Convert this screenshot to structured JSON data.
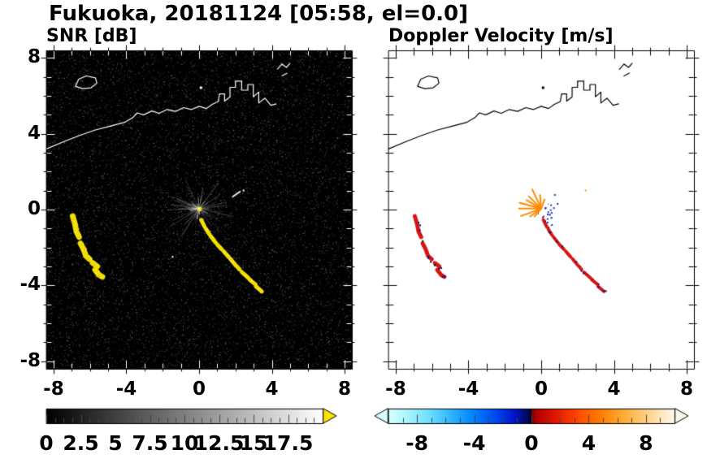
{
  "title": "Fukuoka, 20181124 [05:58, el=0.0]",
  "chart_data": {
    "type": "heatmap",
    "subtype": "radar-ppi-dual-panel",
    "title": "Fukuoka, 20181124 [05:58, el=0.0]",
    "site": "Fukuoka",
    "date": "20181124",
    "time": "05:58",
    "elevation": "el=0.0",
    "axis": {
      "xlim": [
        -8.4,
        8.4
      ],
      "ylim": [
        -8.4,
        8.4
      ],
      "xtick_values": [
        -8,
        -4,
        0,
        4,
        8
      ],
      "xtick_labels": [
        "-8",
        "-4",
        "0",
        "4",
        "8"
      ],
      "ytick_values": [
        8,
        4,
        0,
        -4,
        -8
      ],
      "ytick_labels": [
        "8",
        "4",
        "0",
        "-4",
        "-8"
      ],
      "minor_step": 1
    },
    "panels": [
      {
        "label": "SNR [dB]",
        "background": "#000000",
        "coast_color": "#ffffff",
        "echo_color": "#f2df00",
        "echo_core_color": "#ffffff",
        "spike_color": "#c8c8c8",
        "colorbar": {
          "min": 0,
          "max": 20,
          "tick_values": [
            0,
            2.5,
            5,
            7.5,
            10,
            12.5,
            15,
            17.5
          ],
          "tick_labels": [
            "0",
            "2.5",
            "5",
            "7.5",
            "10",
            "12.5",
            "15",
            "17.5"
          ],
          "minor_step": 0.625,
          "gradient": [
            [
              0,
              "#000000"
            ],
            [
              1,
              "#ffffff"
            ]
          ],
          "over_color": "#f6e400"
        }
      },
      {
        "label": "Doppler Velocity [m/s]",
        "background": "#ffffff",
        "coast_color": "#000000",
        "echo_color": "#d81414",
        "fleck_navy": "#001284",
        "fleck_black": "#1a1a1a",
        "spike_orange": "#ff8a00",
        "cluster_blue": "#1436c8",
        "colorbar": {
          "min": -10,
          "max": 10,
          "tick_values": [
            -8,
            -4,
            0,
            4,
            8
          ],
          "tick_labels": [
            "-8",
            "-4",
            "0",
            "4",
            "8"
          ],
          "minor_step": 1,
          "gradient": [
            [
              0.0,
              "#d8ffff"
            ],
            [
              0.06,
              "#aef6ff"
            ],
            [
              0.14,
              "#6fe0ff"
            ],
            [
              0.22,
              "#2fb4ff"
            ],
            [
              0.3,
              "#0080ff"
            ],
            [
              0.38,
              "#0044ee"
            ],
            [
              0.44,
              "#0014c8"
            ],
            [
              0.48,
              "#000a6e"
            ],
            [
              0.499,
              "#00022a"
            ],
            [
              0.501,
              "#7a0000"
            ],
            [
              0.52,
              "#b40000"
            ],
            [
              0.58,
              "#e11400"
            ],
            [
              0.66,
              "#ff4600"
            ],
            [
              0.74,
              "#ff7d00"
            ],
            [
              0.82,
              "#ffab33"
            ],
            [
              0.9,
              "#ffd080"
            ],
            [
              0.97,
              "#ffedd0"
            ],
            [
              1.0,
              "#fff6e8"
            ]
          ],
          "under_color": "#d8ffff",
          "over_color": "#fff9ef"
        }
      }
    ],
    "features": {
      "coastline": {
        "main": [
          [
            -8.4,
            3.2
          ],
          [
            -7.4,
            3.6
          ],
          [
            -6.6,
            3.9
          ],
          [
            -5.7,
            4.2
          ],
          [
            -4.9,
            4.4
          ],
          [
            -4.1,
            4.6
          ],
          [
            -3.65,
            4.85
          ],
          [
            -3.4,
            5.1
          ],
          [
            -3.05,
            5.0
          ],
          [
            -2.6,
            5.2
          ],
          [
            -2.2,
            5.08
          ],
          [
            -1.75,
            5.28
          ],
          [
            -1.3,
            5.18
          ],
          [
            -0.85,
            5.38
          ],
          [
            -0.42,
            5.28
          ],
          [
            0.0,
            5.45
          ],
          [
            0.4,
            5.33
          ],
          [
            0.72,
            5.55
          ],
          [
            1.05,
            5.7
          ],
          [
            1.12,
            6.1
          ],
          [
            1.4,
            6.1
          ],
          [
            1.4,
            5.72
          ],
          [
            1.7,
            5.95
          ],
          [
            1.7,
            6.45
          ],
          [
            2.0,
            6.45
          ],
          [
            2.0,
            6.78
          ],
          [
            2.34,
            6.78
          ],
          [
            2.34,
            6.3
          ],
          [
            2.68,
            6.3
          ],
          [
            2.68,
            6.6
          ],
          [
            2.98,
            6.6
          ],
          [
            2.98,
            5.95
          ],
          [
            3.28,
            6.2
          ],
          [
            3.28,
            5.62
          ],
          [
            3.62,
            5.88
          ],
          [
            3.95,
            5.5
          ],
          [
            4.25,
            5.58
          ]
        ],
        "island": [
          [
            -6.8,
            6.5
          ],
          [
            -6.62,
            6.88
          ],
          [
            -6.2,
            7.05
          ],
          [
            -5.7,
            6.95
          ],
          [
            -5.62,
            6.67
          ],
          [
            -5.95,
            6.42
          ],
          [
            -6.4,
            6.38
          ]
        ],
        "marks": [
          [
            [
              4.3,
              7.4
            ],
            [
              4.55,
              7.68
            ],
            [
              4.8,
              7.5
            ],
            [
              5.0,
              7.72
            ]
          ],
          [
            [
              4.55,
              7.05
            ],
            [
              4.85,
              7.2
            ]
          ]
        ],
        "dot": [
          0.08,
          6.45
        ]
      },
      "echoes": {
        "west_arc": [
          [
            [
              -6.95,
              -0.35
            ],
            [
              -6.82,
              -0.78
            ],
            [
              -6.75,
              -1.15
            ],
            [
              -6.6,
              -1.45
            ]
          ],
          [
            [
              -6.52,
              -1.78
            ],
            [
              -6.35,
              -2.1
            ],
            [
              -6.22,
              -2.45
            ],
            [
              -6.02,
              -2.62
            ]
          ],
          [
            [
              -5.85,
              -2.82
            ],
            [
              -5.6,
              -3.0
            ]
          ],
          [
            [
              -5.72,
              -3.18
            ],
            [
              -5.5,
              -3.45
            ],
            [
              -5.32,
              -3.55
            ]
          ]
        ],
        "chain": [
          [
            [
              0.12,
              -0.55
            ],
            [
              0.3,
              -0.9
            ]
          ],
          [
            [
              0.38,
              -1.02
            ],
            [
              0.58,
              -1.32
            ]
          ],
          [
            [
              0.65,
              -1.42
            ],
            [
              0.92,
              -1.75
            ]
          ],
          [
            [
              1.0,
              -1.85
            ],
            [
              1.25,
              -2.1
            ]
          ],
          [
            [
              1.35,
              -2.2
            ],
            [
              1.62,
              -2.5
            ]
          ],
          [
            [
              1.72,
              -2.6
            ],
            [
              2.02,
              -2.95
            ]
          ],
          [
            [
              2.1,
              -3.02
            ],
            [
              2.22,
              -3.16
            ]
          ],
          [
            [
              2.35,
              -3.3
            ],
            [
              2.72,
              -3.62
            ]
          ],
          [
            [
              2.78,
              -3.7
            ],
            [
              3.1,
              -3.95
            ]
          ],
          [
            [
              3.12,
              -4.05
            ],
            [
              3.45,
              -4.32
            ]
          ]
        ],
        "streak": [
          [
            1.85,
            0.68
          ],
          [
            2.25,
            0.95
          ]
        ],
        "snr_specks": [
          [
            -1.5,
            -2.45
          ],
          [
            2.4,
            1.05
          ]
        ],
        "vel_gap_dots": [
          [
            -6.56,
            -1.62
          ],
          [
            -6.12,
            -2.72
          ],
          [
            -5.66,
            -3.08
          ],
          [
            -5.9,
            -2.9
          ]
        ],
        "center": [
          0,
          0.05
        ]
      }
    }
  }
}
